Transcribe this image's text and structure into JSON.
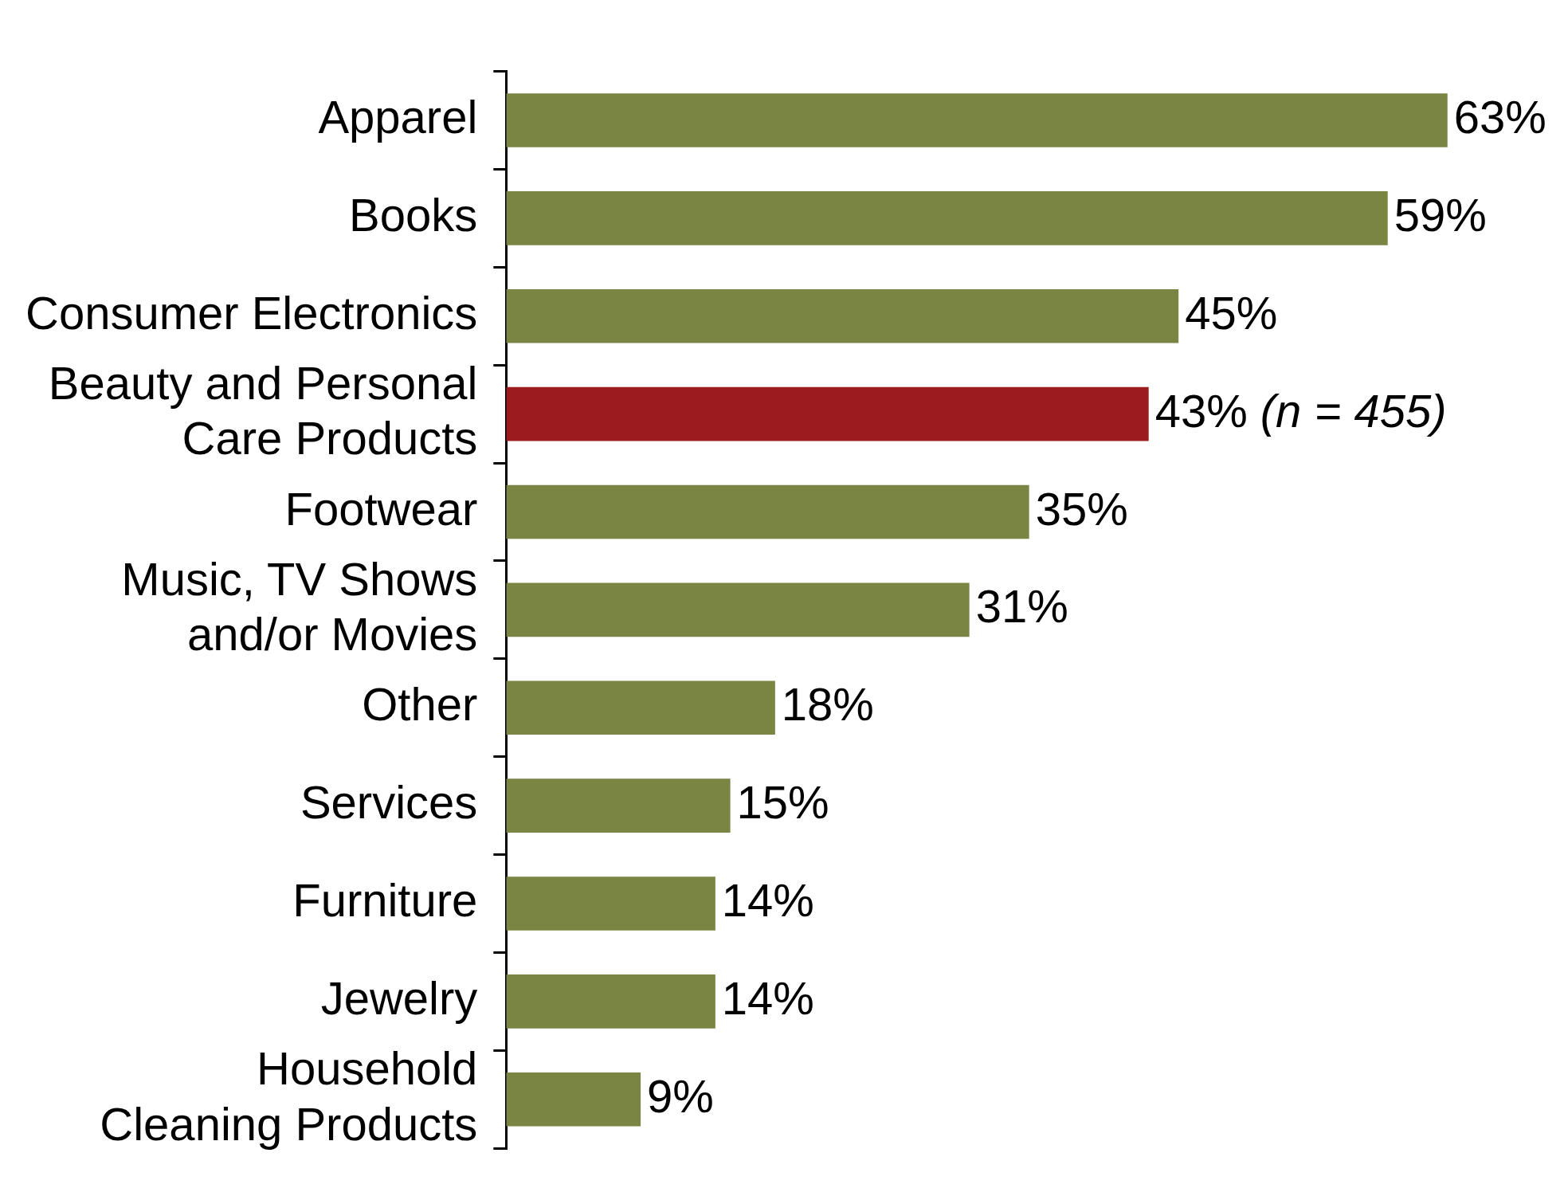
{
  "chart_data": {
    "type": "bar",
    "orientation": "horizontal",
    "categories": [
      "Apparel",
      "Books",
      "Consumer Electronics",
      "Beauty and Personal Care Products",
      "Footwear",
      "Music, TV Shows and/or Movies",
      "Other",
      "Services",
      "Furniture",
      "Jewelry",
      "Household Cleaning Products"
    ],
    "values": [
      63,
      59,
      45,
      43,
      35,
      31,
      18,
      15,
      14,
      14,
      9
    ],
    "colors": [
      "#7a8443",
      "#7a8443",
      "#7a8443",
      "#9b1b1e",
      "#7a8443",
      "#7a8443",
      "#7a8443",
      "#7a8443",
      "#7a8443",
      "#7a8443",
      "#7a8443"
    ],
    "value_labels": [
      "63%",
      "59%",
      "45%",
      "43%",
      "35%",
      "31%",
      "18%",
      "15%",
      "14%",
      "14%",
      "9%"
    ],
    "annotations": [
      {
        "text": "(n = 455)",
        "x": 43,
        "y": "Beauty and Personal Care Products"
      }
    ],
    "grid": false,
    "legend": false
  }
}
